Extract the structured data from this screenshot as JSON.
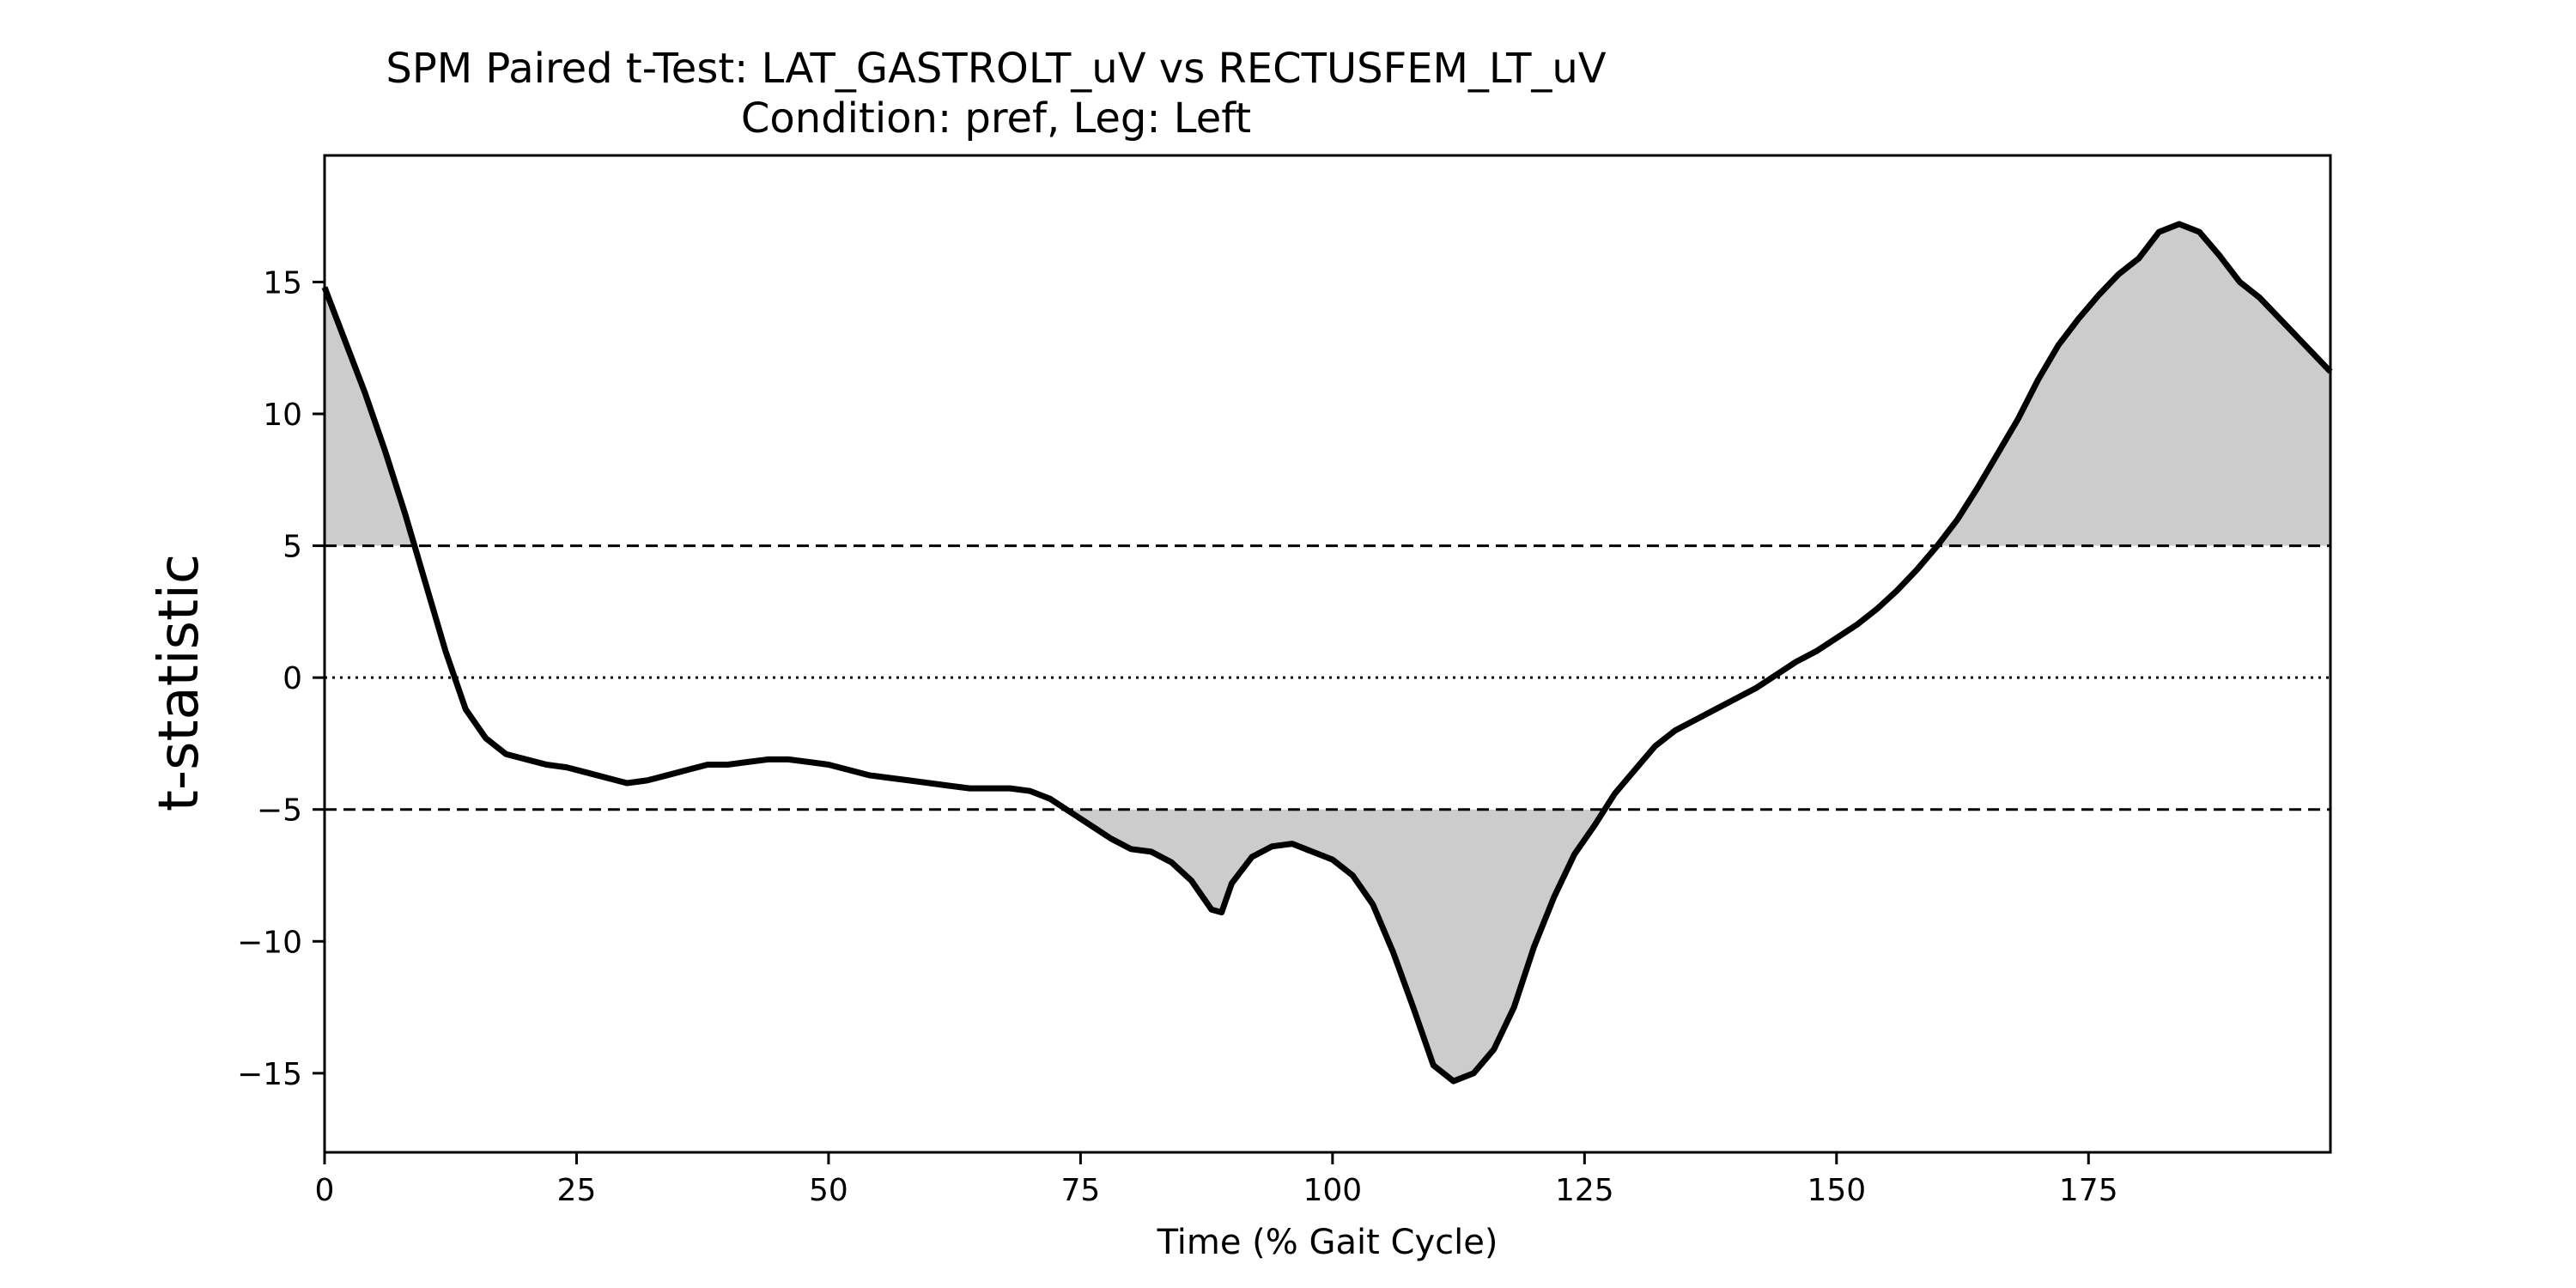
{
  "chart_data": {
    "type": "line",
    "title": "SPM Paired t-Test: LAT_GASTROLT_uV vs RECTUSFEM_LT_uV",
    "subtitle": "Condition: pref, Leg: Left",
    "xlabel": "Time (% Gait Cycle)",
    "ylabel": "t-statistic",
    "xlim": [
      0,
      199
    ],
    "ylim": [
      -18.0,
      19.8
    ],
    "x_ticks": [
      0,
      25,
      50,
      75,
      100,
      125,
      150,
      175
    ],
    "x_tick_labels": [
      "0",
      "25",
      "50",
      "75",
      "100",
      "125",
      "150",
      "175"
    ],
    "y_ticks": [
      15,
      10,
      5,
      0,
      -5,
      -10,
      -15
    ],
    "y_tick_labels": [
      "15",
      "10",
      "5",
      "0",
      "−5",
      "−10",
      "−15"
    ],
    "grid": false,
    "threshold_upper": 5.0,
    "threshold_lower": -5.0,
    "zero_line": 0,
    "line_color": "#000000",
    "fill_color": "#cccccc",
    "x": [
      0,
      2,
      4,
      6,
      8,
      10,
      12,
      14,
      16,
      18,
      20,
      22,
      24,
      26,
      28,
      30,
      32,
      34,
      36,
      38,
      40,
      42,
      44,
      46,
      48,
      50,
      52,
      54,
      56,
      58,
      60,
      62,
      64,
      66,
      68,
      70,
      72,
      74,
      76,
      78,
      80,
      82,
      84,
      86,
      88,
      89,
      90,
      92,
      94,
      96,
      98,
      100,
      102,
      104,
      106,
      108,
      110,
      112,
      114,
      116,
      118,
      120,
      122,
      124,
      126,
      128,
      130,
      132,
      134,
      136,
      138,
      140,
      142,
      144,
      146,
      148,
      150,
      152,
      154,
      156,
      158,
      160,
      162,
      164,
      166,
      168,
      170,
      172,
      174,
      176,
      178,
      180,
      182,
      184,
      186,
      188,
      190,
      192,
      194,
      196,
      198,
      199
    ],
    "y": [
      14.8,
      12.8,
      10.8,
      8.6,
      6.2,
      3.6,
      1.0,
      -1.2,
      -2.3,
      -2.9,
      -3.1,
      -3.3,
      -3.4,
      -3.6,
      -3.8,
      -4.0,
      -3.9,
      -3.7,
      -3.5,
      -3.3,
      -3.3,
      -3.2,
      -3.1,
      -3.1,
      -3.2,
      -3.3,
      -3.5,
      -3.7,
      -3.8,
      -3.9,
      -4.0,
      -4.1,
      -4.2,
      -4.2,
      -4.2,
      -4.3,
      -4.6,
      -5.1,
      -5.6,
      -6.1,
      -6.5,
      -6.6,
      -7.0,
      -7.7,
      -8.8,
      -8.9,
      -7.8,
      -6.8,
      -6.4,
      -6.3,
      -6.6,
      -6.9,
      -7.5,
      -8.6,
      -10.4,
      -12.5,
      -14.7,
      -15.3,
      -15.0,
      -14.1,
      -12.5,
      -10.2,
      -8.3,
      -6.7,
      -5.6,
      -4.4,
      -3.5,
      -2.6,
      -2.0,
      -1.6,
      -1.2,
      -0.8,
      -0.4,
      0.1,
      0.6,
      1.0,
      1.5,
      2.0,
      2.6,
      3.3,
      4.1,
      5.0,
      6.0,
      7.2,
      8.5,
      9.8,
      11.3,
      12.6,
      13.6,
      14.5,
      15.3,
      15.9,
      16.9,
      17.2,
      16.9,
      16.0,
      15.0,
      14.4,
      13.6,
      12.8,
      12.0,
      11.6
    ]
  }
}
